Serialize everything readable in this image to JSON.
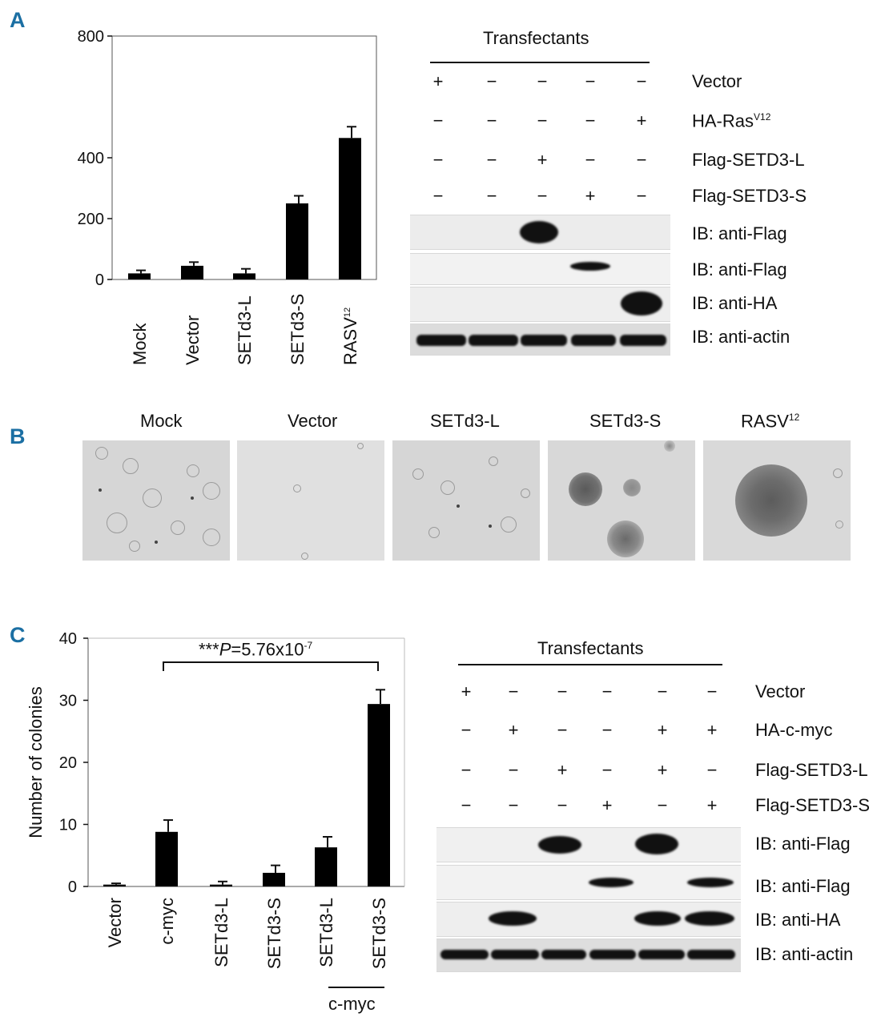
{
  "panels": {
    "a": "A",
    "b": "B",
    "c": "C"
  },
  "panel_a": {
    "blot": {
      "title": "Transfectants",
      "rows": [
        {
          "label": "Vector",
          "signs": [
            "+",
            "−",
            "−",
            "−",
            "−"
          ]
        },
        {
          "label": "HA-Ras",
          "label_sup": "V12",
          "signs": [
            "−",
            "−",
            "−",
            "−",
            "+"
          ]
        },
        {
          "label": "Flag-SETD3-L",
          "signs": [
            "−",
            "−",
            "+",
            "−",
            "−"
          ]
        },
        {
          "label": "Flag-SETD3-S",
          "signs": [
            "−",
            "−",
            "−",
            "+",
            "−"
          ]
        }
      ],
      "ib": [
        "IB: anti-Flag",
        "IB: anti-Flag",
        "IB: anti-HA",
        "IB: anti-actin"
      ]
    }
  },
  "panel_b": {
    "photos": [
      {
        "label": "Mock"
      },
      {
        "label": "Vector"
      },
      {
        "label": "SETd3-L"
      },
      {
        "label": "SETd3-S"
      },
      {
        "label": "RASV",
        "label_sup": "12"
      }
    ]
  },
  "panel_c": {
    "bracket_stars": "***",
    "bracket_p": "P",
    "bracket_value": "=5.76x10",
    "bracket_exp": "-7",
    "group_label": "c-myc",
    "blot": {
      "title": "Transfectants",
      "rows": [
        {
          "label": "Vector",
          "signs": [
            "+",
            "−",
            "−",
            "−",
            "−",
            "−"
          ]
        },
        {
          "label": "HA-c-myc",
          "signs": [
            "−",
            "+",
            "−",
            "−",
            "+",
            "+"
          ]
        },
        {
          "label": "Flag-SETD3-L",
          "signs": [
            "−",
            "−",
            "+",
            "−",
            "+",
            "−"
          ]
        },
        {
          "label": "Flag-SETD3-S",
          "signs": [
            "−",
            "−",
            "−",
            "+",
            "−",
            "+"
          ]
        }
      ],
      "ib": [
        "IB: anti-Flag",
        "IB: anti-Flag",
        "IB: anti-HA",
        "IB: anti-actin"
      ]
    }
  },
  "chart_data": [
    {
      "type": "bar",
      "title": "",
      "xlabel": "",
      "ylabel": "",
      "categories": [
        "Mock",
        "Vector",
        "SETd3-L",
        "SETd3-S",
        "RASV12"
      ],
      "category_sup": {
        "4": "12"
      },
      "category_base": {
        "4": "RASV"
      },
      "values": [
        20,
        45,
        20,
        250,
        465
      ],
      "errors": [
        10,
        12,
        15,
        25,
        37
      ],
      "ylim": [
        0,
        800
      ],
      "yticks": [
        0,
        200,
        400,
        800
      ],
      "grid": false,
      "color": "#000000"
    },
    {
      "type": "bar",
      "title": "",
      "xlabel": "",
      "ylabel": "Number of colonies",
      "categories": [
        "Vector",
        "c-myc",
        "SETd3-L",
        "SETd3-S",
        "SETd3-L",
        "SETd3-S"
      ],
      "values": [
        0.3,
        8.8,
        0.3,
        2.2,
        6.3,
        29.4
      ],
      "errors": [
        0.2,
        1.9,
        0.5,
        1.2,
        1.7,
        2.3
      ],
      "ylim": [
        0,
        40
      ],
      "yticks": [
        0,
        10,
        20,
        30,
        40
      ],
      "grid": false,
      "color": "#000000"
    }
  ]
}
